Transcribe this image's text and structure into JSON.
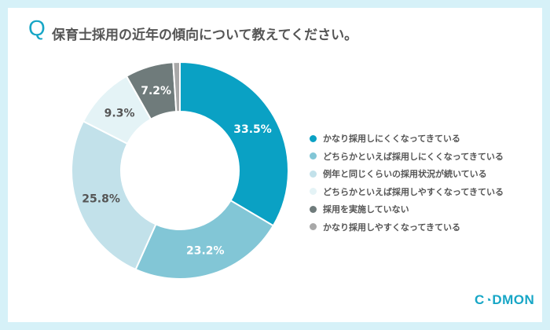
{
  "header": {
    "q_mark": "Q",
    "title": "保育士採用の近年の傾向について教えてください。"
  },
  "logo": {
    "text": "CODMON"
  },
  "chart_data": {
    "type": "pie",
    "donut": true,
    "title": "保育士採用の近年の傾向について教えてください。",
    "categories": [
      "かなり採用しにくくなってきている",
      "どちらかといえば採用しにくくなってきている",
      "例年と同じくらいの採用状況が続いている",
      "どちらかといえば採用しやすくなってきている",
      "採用を実施していない",
      "かなり採用しやすくなってきている"
    ],
    "values": [
      33.5,
      23.2,
      25.8,
      9.3,
      7.2,
      1.0
    ],
    "labels": [
      "33.5%",
      "23.2%",
      "25.8%",
      "9.3%",
      "7.2%",
      ""
    ],
    "colors": [
      "#0aa1c4",
      "#82c6d6",
      "#c2e1ea",
      "#e4f3f6",
      "#6f7b7b",
      "#a8a8a8"
    ],
    "label_colors": [
      "#ffffff",
      "#ffffff",
      "#555555",
      "#555555",
      "#ffffff",
      ""
    ],
    "legend_position": "right"
  }
}
